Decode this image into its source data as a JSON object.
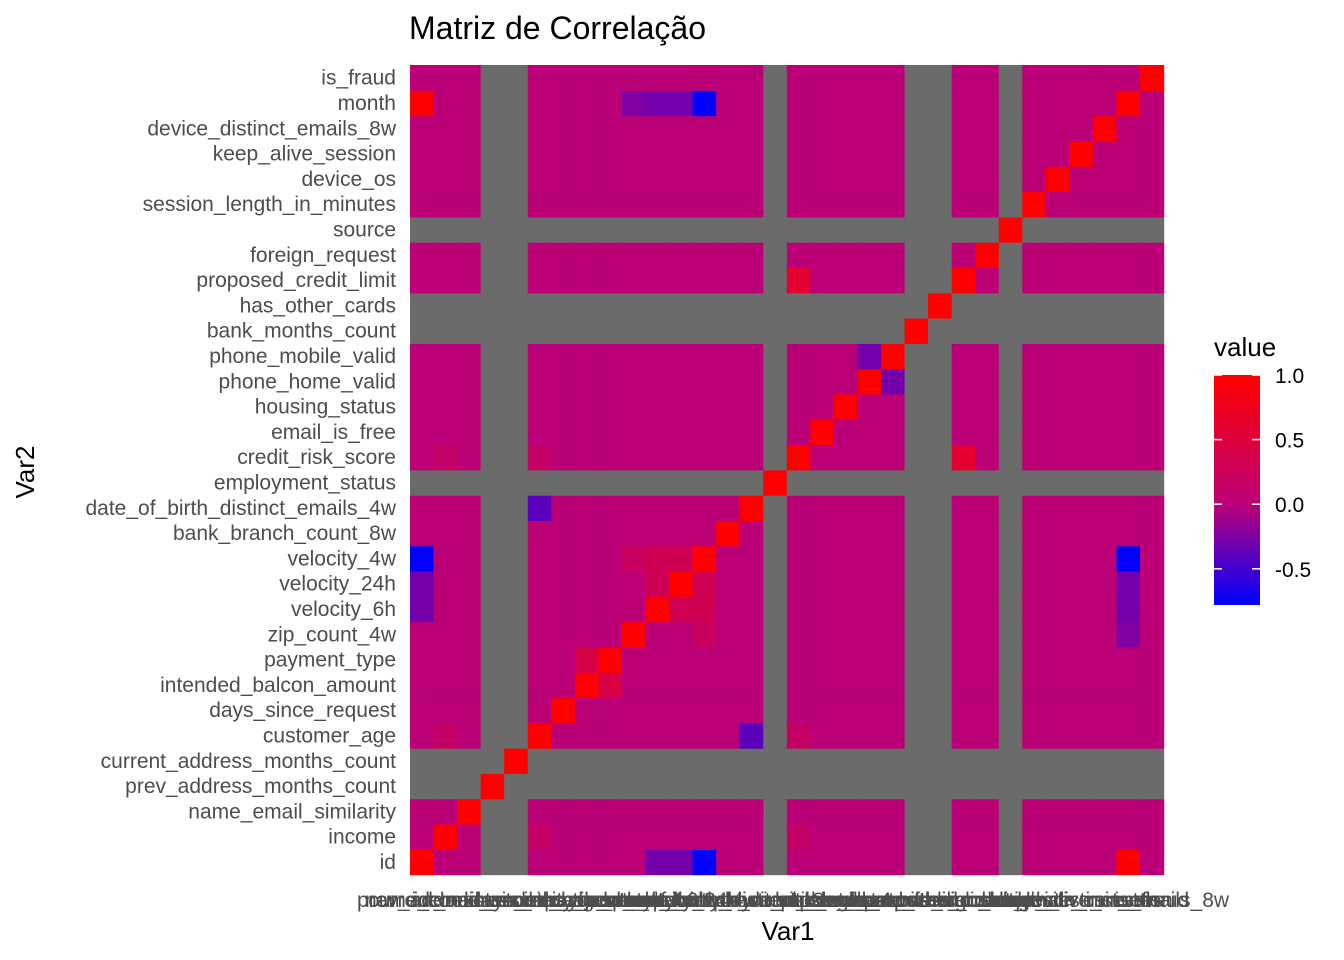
{
  "chart_data": {
    "type": "heatmap",
    "title": "Matriz de Correlação",
    "xlabel": "Var1",
    "ylabel": "Var2",
    "variables": [
      "id",
      "income",
      "name_email_similarity",
      "prev_address_months_count",
      "current_address_months_count",
      "customer_age",
      "days_since_request",
      "intended_balcon_amount",
      "payment_type",
      "zip_count_4w",
      "velocity_6h",
      "velocity_24h",
      "velocity_4w",
      "bank_branch_count_8w",
      "date_of_birth_distinct_emails_4w",
      "employment_status",
      "credit_risk_score",
      "email_is_free",
      "housing_status",
      "phone_home_valid",
      "phone_mobile_valid",
      "bank_months_count",
      "has_other_cards",
      "proposed_credit_limit",
      "foreign_request",
      "source",
      "session_length_in_minutes",
      "device_os",
      "keep_alive_session",
      "device_distinct_emails_8w",
      "month",
      "is_fraud"
    ],
    "na_variables": [
      "prev_address_months_count",
      "current_address_months_count",
      "employment_status",
      "bank_months_count",
      "has_other_cards",
      "source"
    ],
    "notable_correlations": [
      {
        "var1": "id",
        "var2": "month",
        "value": 1.0
      },
      {
        "var1": "id",
        "var2": "velocity_4w",
        "value": -0.78
      },
      {
        "var1": "month",
        "var2": "velocity_4w",
        "value": -0.78
      },
      {
        "var1": "intended_balcon_amount",
        "var2": "payment_type",
        "value": 0.4
      },
      {
        "var1": "velocity_6h",
        "var2": "velocity_24h",
        "value": 0.3
      },
      {
        "var1": "customer_age",
        "var2": "date_of_birth_distinct_emails_4w",
        "value": -0.4
      },
      {
        "var1": "credit_risk_score",
        "var2": "proposed_credit_limit",
        "value": 0.6
      },
      {
        "var1": "phone_home_valid",
        "var2": "phone_mobile_valid",
        "value": -0.3
      },
      {
        "var1": "velocity_24h",
        "var2": "velocity_4w",
        "value": 0.3
      },
      {
        "var1": "velocity_6h",
        "var2": "velocity_4w",
        "value": 0.3
      },
      {
        "var1": "zip_count_4w",
        "var2": "velocity_4w",
        "value": 0.2
      },
      {
        "var1": "velocity_4w",
        "var2": "velocity_24h",
        "value": 0.3
      },
      {
        "var1": "income",
        "var2": "customer_age",
        "value": 0.15
      },
      {
        "var1": "income",
        "var2": "credit_risk_score",
        "value": 0.15
      },
      {
        "var1": "customer_age",
        "var2": "credit_risk_score",
        "value": 0.15
      },
      {
        "var1": "month",
        "var2": "zip_count_4w",
        "value": -0.25
      },
      {
        "var1": "month",
        "var2": "velocity_6h",
        "value": -0.3
      },
      {
        "var1": "month",
        "var2": "velocity_24h",
        "value": -0.3
      },
      {
        "var1": "id",
        "var2": "velocity_6h",
        "value": -0.3
      },
      {
        "var1": "id",
        "var2": "velocity_24h",
        "value": -0.3
      }
    ],
    "default_value": 0.0,
    "color_scale": {
      "low": "#0000FF",
      "mid": "#BB0077",
      "high": "#FF0000",
      "limits": [
        -0.78,
        1.0
      ]
    },
    "na_color": "#6B6B6B",
    "legend": {
      "title": "value",
      "ticks": [
        "1.0",
        "0.5",
        "0.0",
        "-0.5"
      ],
      "tick_values": [
        1.0,
        0.5,
        0.0,
        -0.5
      ],
      "position": "right"
    }
  }
}
